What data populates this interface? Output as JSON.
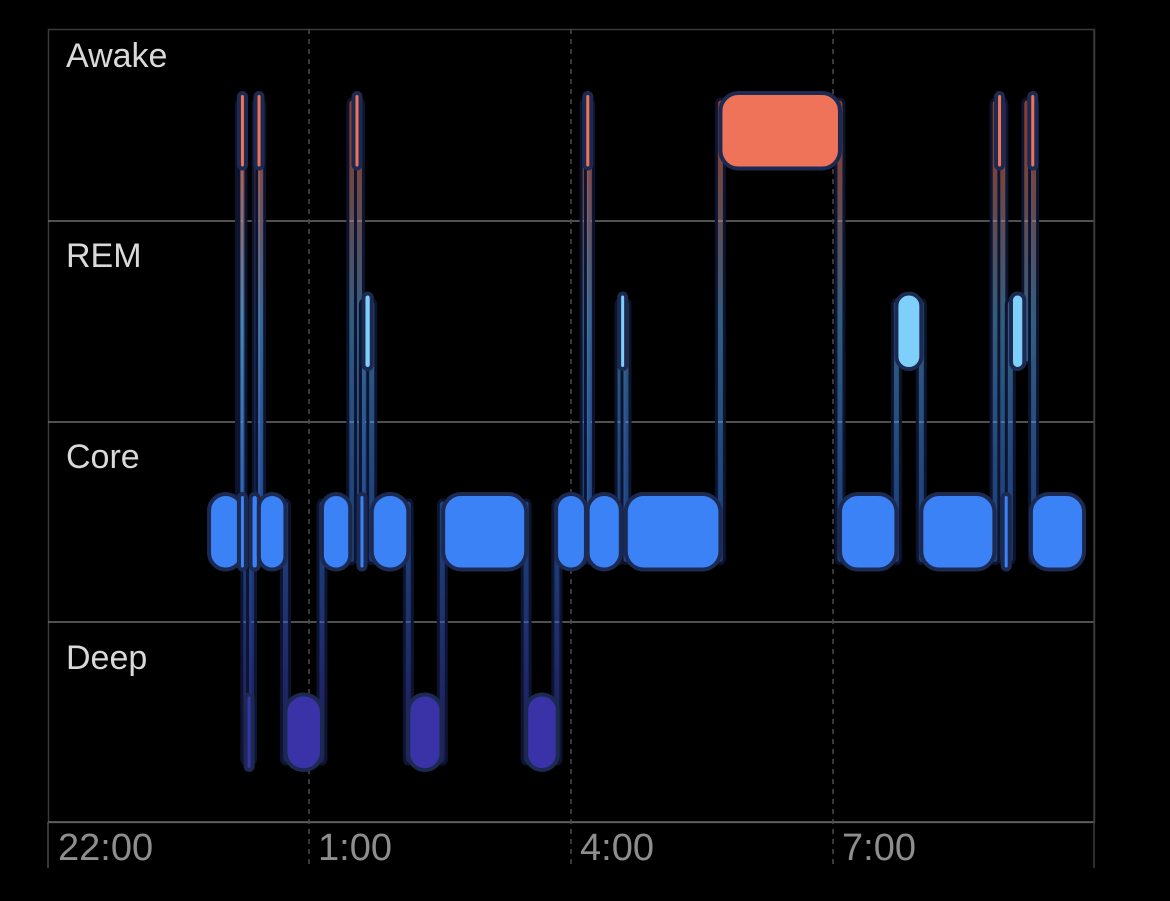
{
  "chart_data": {
    "type": "sleep-stages",
    "stages": [
      "Awake",
      "REM",
      "Core",
      "Deep"
    ],
    "x_ticks": [
      "22:00",
      "1:00",
      "4:00",
      "7:00"
    ],
    "xlim_hours": [
      22.0,
      32.5
    ],
    "grid": true,
    "colors": {
      "Awake": "#ef7359",
      "REM": "#7ed0fb",
      "Core": "#3b82f6",
      "Deep": "#3a33a8",
      "border": "#1c2a52"
    },
    "segments": [
      {
        "stage": "Core",
        "start": "23:37",
        "end": "23:57"
      },
      {
        "stage": "Awake",
        "start": "23:55",
        "end": "23:57"
      },
      {
        "stage": "Core",
        "start": "23:55",
        "end": "23:59"
      },
      {
        "stage": "Deep",
        "start": "23:59",
        "end": "00:02"
      },
      {
        "stage": "Core",
        "start": "00:02",
        "end": "00:07"
      },
      {
        "stage": "Awake",
        "start": "00:05",
        "end": "00:08"
      },
      {
        "stage": "Core",
        "start": "00:07",
        "end": "00:23"
      },
      {
        "stage": "Deep",
        "start": "00:23",
        "end": "00:45"
      },
      {
        "stage": "Core",
        "start": "00:45",
        "end": "01:02"
      },
      {
        "stage": "Awake",
        "start": "01:04",
        "end": "01:07"
      },
      {
        "stage": "Core",
        "start": "01:07",
        "end": "01:11"
      },
      {
        "stage": "REM",
        "start": "01:10",
        "end": "01:15"
      },
      {
        "stage": "Core",
        "start": "01:15",
        "end": "01:37"
      },
      {
        "stage": "Deep",
        "start": "01:37",
        "end": "01:57"
      },
      {
        "stage": "Core",
        "start": "01:58",
        "end": "02:48"
      },
      {
        "stage": "Deep",
        "start": "02:48",
        "end": "03:07"
      },
      {
        "stage": "Core",
        "start": "03:06",
        "end": "03:24"
      },
      {
        "stage": "Awake",
        "start": "03:23",
        "end": "03:26"
      },
      {
        "stage": "Core",
        "start": "03:25",
        "end": "03:45"
      },
      {
        "stage": "REM",
        "start": "03:44",
        "end": "03:48"
      },
      {
        "stage": "Core",
        "start": "03:48",
        "end": "04:45"
      },
      {
        "stage": "Awake",
        "start": "04:45",
        "end": "05:57"
      },
      {
        "stage": "Core",
        "start": "05:57",
        "end": "06:31"
      },
      {
        "stage": "REM",
        "start": "06:31",
        "end": "06:46"
      },
      {
        "stage": "Core",
        "start": "06:46",
        "end": "07:30"
      },
      {
        "stage": "Awake",
        "start": "07:31",
        "end": "07:35"
      },
      {
        "stage": "Core",
        "start": "07:35",
        "end": "07:39"
      },
      {
        "stage": "REM",
        "start": "07:40",
        "end": "07:48"
      },
      {
        "stage": "Awake",
        "start": "07:51",
        "end": "07:53"
      },
      {
        "stage": "Core",
        "start": "07:52",
        "end": "08:24"
      }
    ]
  }
}
